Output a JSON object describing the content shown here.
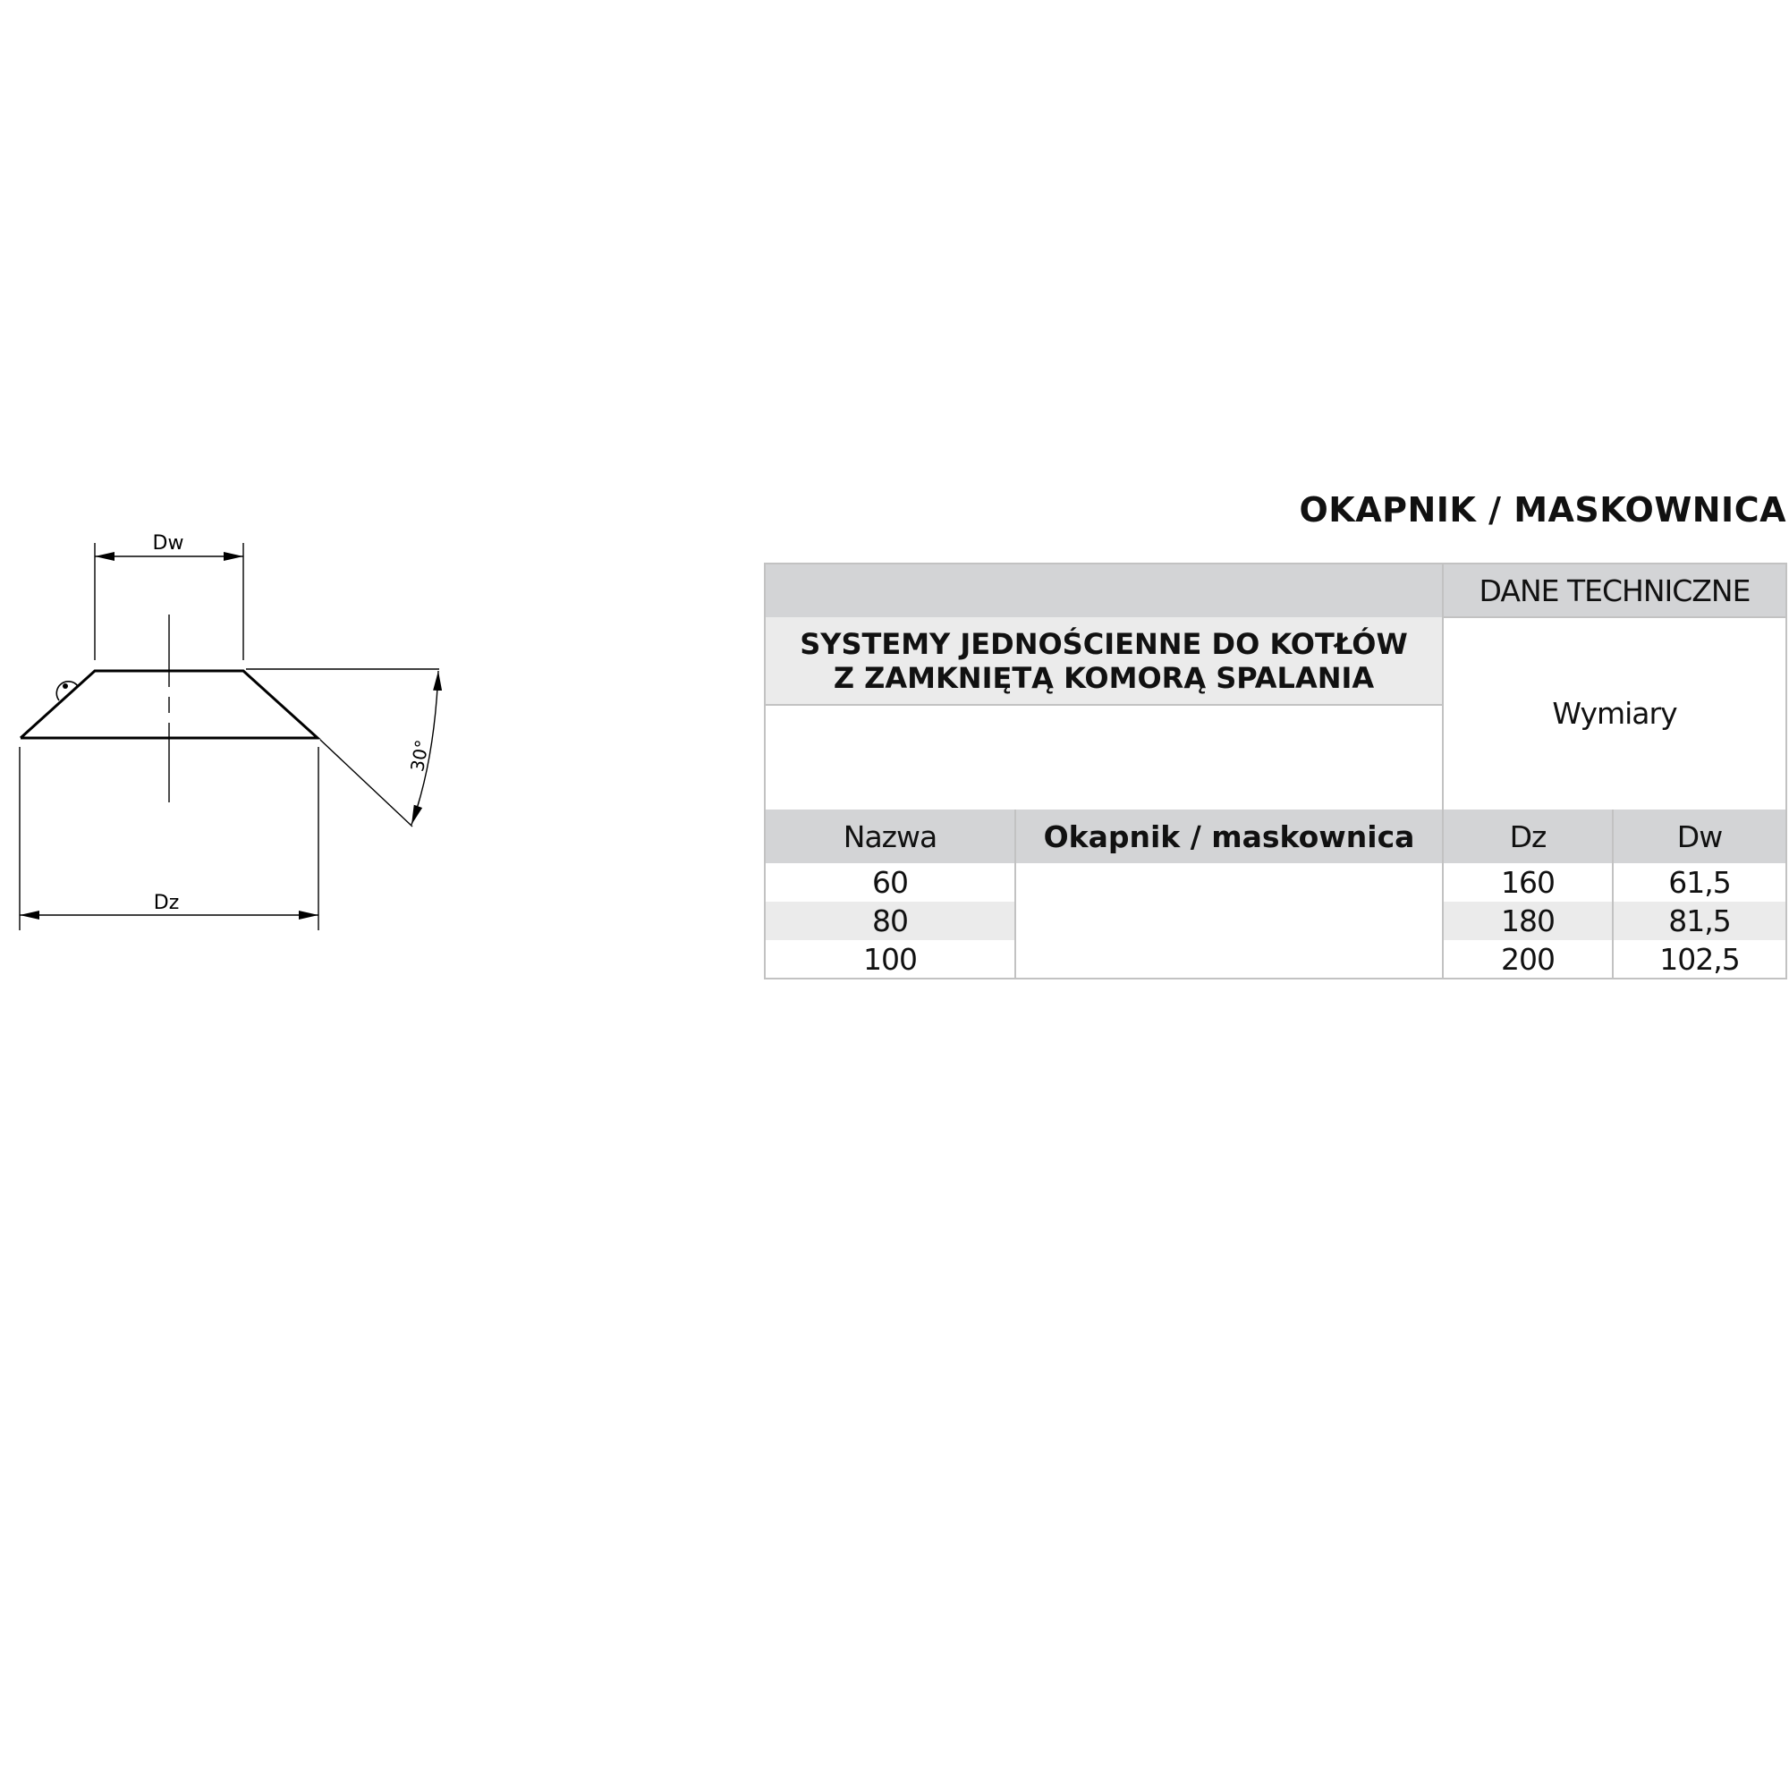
{
  "title": "OKAPNIK / MASKOWNICA",
  "drawing": {
    "label_dw": "Dw",
    "label_dz": "Dz",
    "angle_label": "30°"
  },
  "table": {
    "tech_header": "DANE TECHNICZNE",
    "system_title_line1": "SYSTEMY JEDNOŚCIENNE DO KOTŁÓW",
    "system_title_line2": "Z ZAMKNIĘTĄ KOMORĄ SPALANIA",
    "dimensions_label": "Wymiary",
    "columns": [
      "Nazwa",
      "Okapnik / maskownica",
      "Dz",
      "Dw"
    ],
    "rows": [
      {
        "nazwa": "60",
        "dz": "160",
        "dw": "61,5"
      },
      {
        "nazwa": "80",
        "dz": "180",
        "dw": "81,5"
      },
      {
        "nazwa": "100",
        "dz": "200",
        "dw": "102,5"
      }
    ]
  }
}
